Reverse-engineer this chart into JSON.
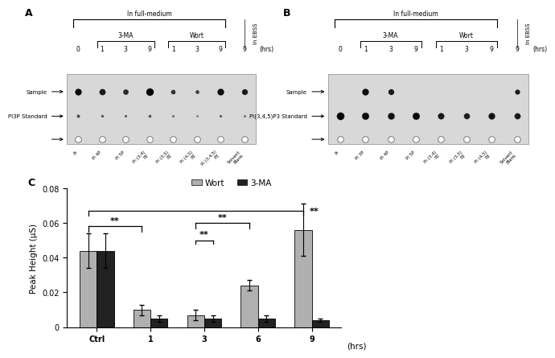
{
  "panel_C": {
    "categories": [
      "Ctrl",
      "1",
      "3",
      "6",
      "9"
    ],
    "wort_values": [
      0.044,
      0.01,
      0.007,
      0.024,
      0.056
    ],
    "wort_errors": [
      0.01,
      0.003,
      0.003,
      0.003,
      0.015
    ],
    "ma_values": [
      0.044,
      0.005,
      0.005,
      0.005,
      0.004
    ],
    "ma_errors": [
      0.01,
      0.002,
      0.002,
      0.002,
      0.001
    ],
    "ylabel": "Peak Height (μS)",
    "xlabel": "(hrs)",
    "ylim": [
      0,
      0.08
    ],
    "yticks": [
      0,
      0.02,
      0.04,
      0.06,
      0.08
    ],
    "wort_color": "#b0b0b0",
    "ma_color": "#222222",
    "legend_wort": "Wort",
    "legend_ma": "3-MA"
  },
  "panel_A": {
    "title": "In full-medium",
    "subtitle_3ma": "3-MA",
    "subtitle_wort": "Wort",
    "in_ebss": "In EBSS",
    "hrs_labels": [
      "0",
      "1",
      "3",
      "9",
      "1",
      "3",
      "9",
      "9"
    ],
    "row_labels": [
      "Sample",
      "PI3P Standard",
      ""
    ],
    "x_labels": [
      "PI",
      "PI 4P",
      "PI 5P",
      "PI (3,4)\nP2",
      "PI (3,5)\nP2",
      "PI (4,5)\nP2",
      "PI (3,4,5)\nP3",
      "Solvent\nBlank"
    ],
    "background_color": "#d8d8d8",
    "sample_row": [
      0.8,
      0.75,
      0.65,
      0.9,
      0.55,
      0.45,
      0.8,
      0.7
    ],
    "standard_row": [
      0.35,
      0.3,
      0.28,
      0.32,
      0.25,
      0.22,
      0.28,
      0.25
    ],
    "sample_colors": [
      "#0d0d0d",
      "#1a1a1a",
      "#2a2a2a",
      "#050505",
      "#333333",
      "#3d3d3d",
      "#0d0d0d",
      "#1a1a1a"
    ],
    "standard_colors": [
      "#4a4a4a",
      "#555555",
      "#606060",
      "#505050",
      "#6a6a6a",
      "#737373",
      "#606060",
      "#686868"
    ]
  },
  "panel_B": {
    "title": "In full-medium",
    "subtitle_3ma": "3-MA",
    "subtitle_wort": "Wort",
    "in_ebss": "In EBSS",
    "hrs_labels": [
      "0",
      "1",
      "3",
      "9",
      "1",
      "3",
      "9",
      "9"
    ],
    "row_labels": [
      "Sample",
      "PI(3,4,5)P3 Standard",
      ""
    ],
    "x_labels": [
      "PI",
      "PI 3P",
      "PI 4P",
      "PI 5P",
      "PI (3,4)\nP2",
      "PI (3,5)\nP2",
      "PI (4,5)\nP2",
      "Solvent\nBlank"
    ],
    "background_color": "#d8d8d8",
    "sample_row": [
      0.05,
      0.8,
      0.7,
      0.05,
      0.05,
      0.05,
      0.05,
      0.6
    ],
    "sample_colors": [
      "#cccccc",
      "#0d0d0d",
      "#1a1a1a",
      "#cccccc",
      "#cccccc",
      "#cccccc",
      "#cccccc",
      "#1a1a1a"
    ],
    "standard_row": [
      0.9,
      0.85,
      0.8,
      0.85,
      0.75,
      0.7,
      0.78,
      0.72
    ],
    "standard_colors": [
      "#050505",
      "#0d0d0d",
      "#111111",
      "#0a0a0a",
      "#181818",
      "#1e1e1e",
      "#121212",
      "#171717"
    ]
  }
}
